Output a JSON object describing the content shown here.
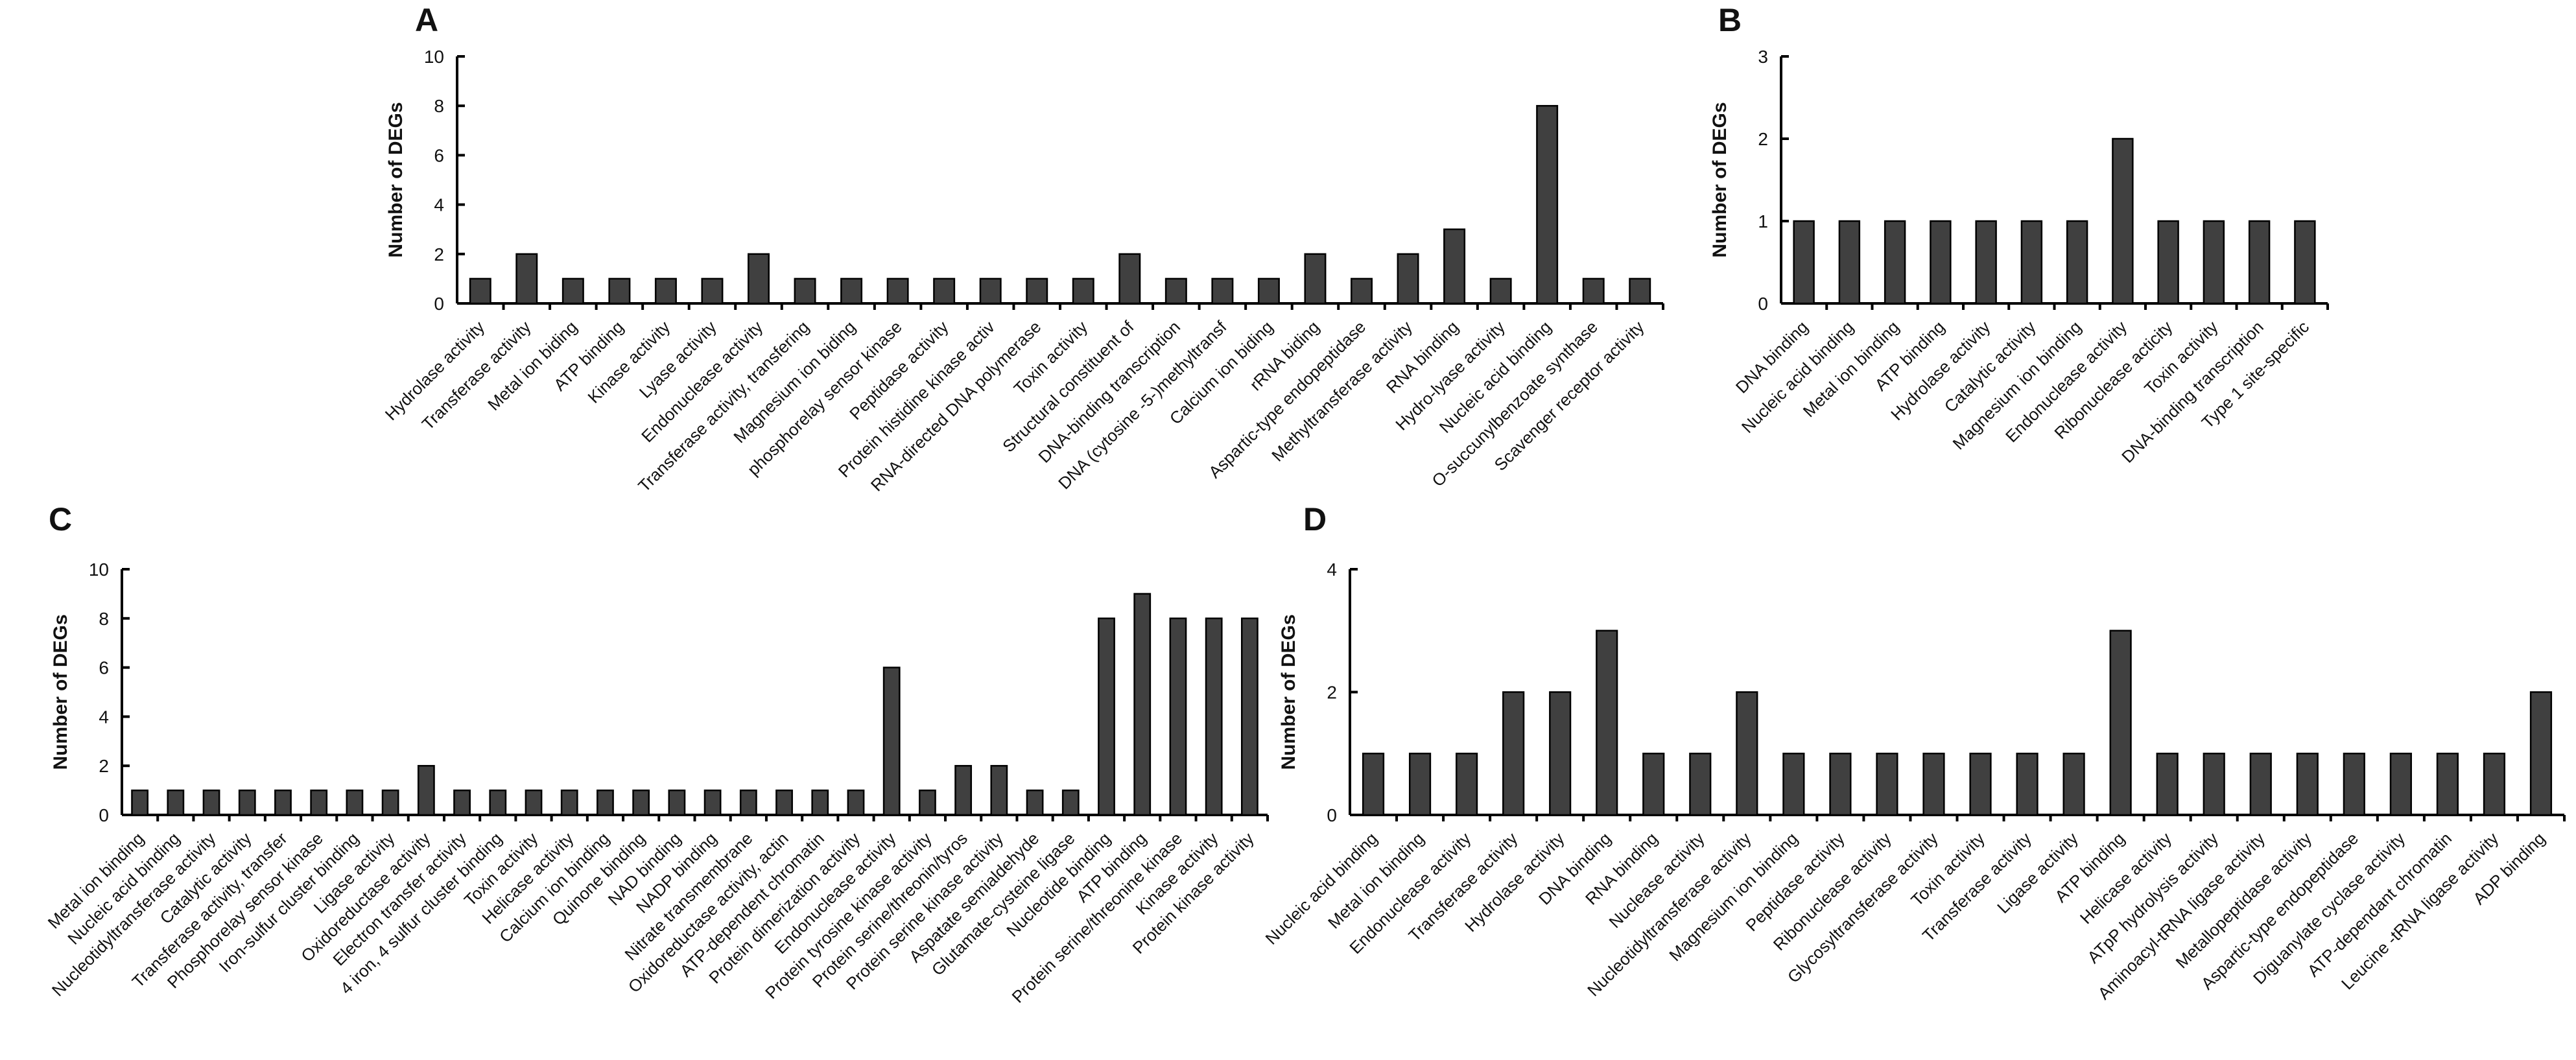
{
  "chart_data": [
    {
      "type": "bar",
      "panel": "A",
      "title": "",
      "xlabel": "",
      "ylabel": "Number of DEGs",
      "ylim": [
        0,
        10
      ],
      "yticks": [
        0,
        2,
        4,
        6,
        8,
        10
      ],
      "grid": false,
      "categories": [
        "Hydrolase activity",
        "Transferase activity",
        "Metal ion biding",
        "ATP binding",
        "Kinase activity",
        "Lyase activity",
        "Endonuclease activity",
        "Transferase activity, transfering",
        "Magnesium ion biding",
        "phosphorelay sensor kinase",
        "Peptidase activity",
        "Protein histidine kinase activ",
        "RNA-directed DNA polymerase",
        "Toxin activity",
        "Structural constituent of",
        "DNA-binding transcription",
        "DNA (cytosine -5-)methyltransf",
        "Calcium ion biding",
        "rRNA biding",
        "Aspartic-type endopeptidase",
        "Methyltransferase activity",
        "RNA binding",
        "Hydro-lyase activity",
        "Nucleic acid binding",
        "O-succunylbenzoate synthase",
        "Scavenger receptor activity"
      ],
      "values": [
        1,
        2,
        1,
        1,
        1,
        1,
        2,
        1,
        1,
        1,
        1,
        1,
        1,
        1,
        2,
        1,
        1,
        1,
        2,
        1,
        2,
        3,
        1,
        8,
        1,
        1
      ]
    },
    {
      "type": "bar",
      "panel": "B",
      "title": "",
      "xlabel": "",
      "ylabel": "Number of DEGs",
      "ylim": [
        0,
        3
      ],
      "yticks": [
        0,
        1,
        2,
        3
      ],
      "grid": false,
      "categories": [
        "DNA binding",
        "Nucleic acid binding",
        "Metal ion binding",
        "ATP binding",
        "Hydrolase activity",
        "Catalytic activity",
        "Magnesium ion binding",
        "Endonuclease activity",
        "Ribonuclease acticity",
        "Toxin activity",
        "DNA-binding transcription",
        "Type 1 site-specific"
      ],
      "values": [
        1,
        1,
        1,
        1,
        1,
        1,
        1,
        2,
        1,
        1,
        1,
        1
      ]
    },
    {
      "type": "bar",
      "panel": "C",
      "title": "",
      "xlabel": "",
      "ylabel": "Number of DEGs",
      "ylim": [
        0,
        10
      ],
      "yticks": [
        0,
        2,
        4,
        6,
        8,
        10
      ],
      "grid": false,
      "categories": [
        "Metal ion binding",
        "Nucleic acid binding",
        "Nucleotidyltransferase activity",
        "Catalytic activity",
        "Transferase activity, transfer",
        "Phosphorelay sensor kinase",
        "Iron-sulfur cluster binding",
        "Ligase activity",
        "Oxidoreductase activity",
        "Electron transfer activity",
        "4 iron, 4 sulfur cluster binding",
        "Toxin activity",
        "Helicase activity",
        "Calcium ion binding",
        "Quinone binding",
        "NAD binding",
        "NADP binding",
        "Nitrate transmembrane",
        "Oxidoreductase activity, actin",
        "ATP-dependent chromatin",
        "Protein dimerization activity",
        "Endonuclease activity",
        "Protein tyrosine kinase activity",
        "Protein serine/threonin/tyros",
        "Protein serine kinase activity",
        "Aspatate semialdehyde",
        "Glutamate-cysteine ligase",
        "Nucleotide binding",
        "ATP binding",
        "Protein serine/threonine kinase",
        "Kinase activity",
        "Protein kinase activity"
      ],
      "values": [
        1,
        1,
        1,
        1,
        1,
        1,
        1,
        1,
        2,
        1,
        1,
        1,
        1,
        1,
        1,
        1,
        1,
        1,
        1,
        1,
        1,
        6,
        1,
        2,
        2,
        1,
        1,
        8,
        9,
        8,
        8,
        8
      ]
    },
    {
      "type": "bar",
      "panel": "D",
      "title": "",
      "xlabel": "",
      "ylabel": "Number of DEGs",
      "ylim": [
        0,
        4
      ],
      "yticks": [
        0,
        2,
        4
      ],
      "grid": false,
      "categories": [
        "Nucleic acid binding",
        "Metal ion binding",
        "Endonuclease activity",
        "Transferase activity",
        "Hydrolase activity",
        "DNA binding",
        "RNA binding",
        "Nuclease activity",
        "Nucleotidyltransferase activity",
        "Magnesium ion binding",
        "Peptidase activity",
        "Ribonuclease activity",
        "Glycosyltransferase activity",
        "Toxin activity",
        "Transferase activity",
        "Ligase activity",
        "ATP binding",
        "Helicase activity",
        "ATpP hydrolysis activity",
        "Aminoacyl-tRNA ligase activity",
        "Metallopeptidase activity",
        "Aspartic-type endopeptidase",
        "Diguanylate cyclase activity",
        "ATP-dependant chromatin",
        "Leucine -tRNA ligase activity",
        "ADP binding"
      ],
      "values": [
        1,
        1,
        1,
        2,
        2,
        3,
        1,
        1,
        2,
        1,
        1,
        1,
        1,
        1,
        1,
        1,
        3,
        1,
        1,
        1,
        1,
        1,
        1,
        1,
        1,
        2
      ]
    }
  ],
  "colors": {
    "bar": "#404040",
    "axis": "#000000"
  }
}
